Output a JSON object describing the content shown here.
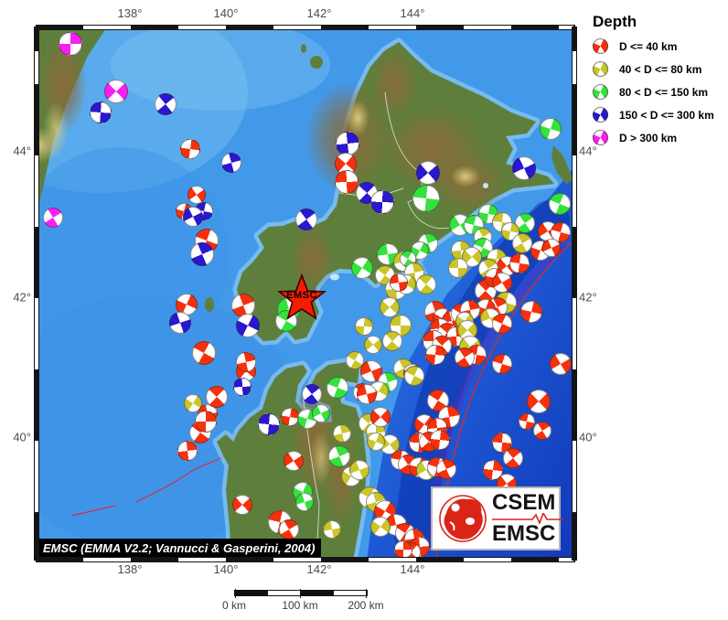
{
  "axes": {
    "top": [
      "138°",
      "140°",
      "142°",
      "144°"
    ],
    "bottom": [
      "138°",
      "140°",
      "142°",
      "144°"
    ],
    "left": [
      "44°",
      "42°",
      "40°"
    ],
    "right": [
      "44°",
      "42°",
      "40°"
    ]
  },
  "legend": {
    "title": "Depth",
    "items": [
      {
        "label": "D <= 40 km",
        "color": "#f7300c"
      },
      {
        "label": "40 < D <= 80 km",
        "color": "#c9c52b"
      },
      {
        "label": "80 < D <= 150 km",
        "color": "#35e23c"
      },
      {
        "label": "150 < D <= 300 km",
        "color": "#2a17cf"
      },
      {
        "label": "D > 300 km",
        "color": "#fb1ef2"
      }
    ]
  },
  "star": {
    "label": "EMSC"
  },
  "attribution": {
    "text": "EMSC (EMMA V2.2; Vannucci & Gasperini, 2004)"
  },
  "logo": {
    "line1": "CSEM",
    "line2": "EMSC"
  },
  "scalebar": {
    "labels": [
      "0 km",
      "100 km",
      "200 km"
    ]
  },
  "depth_colors": [
    "#f7300c",
    "#c9c52b",
    "#35e23c",
    "#2a17cf",
    "#fb1ef2"
  ],
  "balls": [
    [
      76,
      47,
      26,
      4
    ],
    [
      126,
      99,
      26,
      4
    ],
    [
      109,
      122,
      24,
      3
    ],
    [
      180,
      113,
      24,
      3
    ],
    [
      207,
      162,
      22,
      0
    ],
    [
      214,
      212,
      20,
      0
    ],
    [
      222,
      230,
      20,
      3
    ],
    [
      57,
      237,
      22,
      4
    ],
    [
      200,
      230,
      18,
      0
    ],
    [
      210,
      236,
      22,
      3
    ],
    [
      225,
      262,
      26,
      0
    ],
    [
      220,
      277,
      26,
      3
    ],
    [
      203,
      332,
      24,
      0
    ],
    [
      196,
      352,
      24,
      3
    ],
    [
      222,
      385,
      26,
      0
    ],
    [
      252,
      177,
      22,
      3
    ],
    [
      210,
      440,
      20,
      1
    ],
    [
      226,
      452,
      22,
      0
    ],
    [
      218,
      472,
      24,
      0
    ],
    [
      204,
      492,
      22,
      0
    ],
    [
      268,
      405,
      22,
      0
    ],
    [
      264,
      422,
      20,
      3
    ],
    [
      236,
      433,
      24,
      0
    ],
    [
      224,
      460,
      24,
      0
    ],
    [
      264,
      551,
      22,
      0
    ],
    [
      293,
      463,
      24,
      3
    ],
    [
      340,
      430,
      22,
      3
    ],
    [
      316,
      455,
      20,
      0
    ],
    [
      320,
      503,
      22,
      0
    ],
    [
      305,
      570,
      26,
      0
    ],
    [
      315,
      578,
      22,
      0
    ],
    [
      335,
      457,
      22,
      2
    ],
    [
      350,
      451,
      20,
      2
    ],
    [
      368,
      423,
      24,
      2
    ],
    [
      370,
      498,
      24,
      2
    ],
    [
      330,
      537,
      22,
      2
    ],
    [
      332,
      548,
      20,
      2
    ],
    [
      387,
      393,
      20,
      1
    ],
    [
      373,
      473,
      20,
      1
    ],
    [
      383,
      520,
      22,
      1
    ],
    [
      362,
      578,
      20,
      1
    ],
    [
      395,
      428,
      20,
      0
    ],
    [
      379,
      156,
      26,
      3
    ],
    [
      377,
      178,
      24,
      0
    ],
    [
      378,
      198,
      26,
      0
    ],
    [
      400,
      210,
      24,
      3
    ],
    [
      417,
      220,
      26,
      3
    ],
    [
      467,
      188,
      26,
      3
    ],
    [
      465,
      216,
      30,
      2
    ],
    [
      334,
      239,
      24,
      3
    ],
    [
      533,
      233,
      22,
      2
    ],
    [
      502,
      245,
      24,
      2
    ],
    [
      517,
      245,
      22,
      2
    ],
    [
      527,
      258,
      20,
      1
    ],
    [
      601,
      140,
      24,
      2
    ],
    [
      572,
      183,
      26,
      3
    ],
    [
      611,
      222,
      24,
      2
    ],
    [
      265,
      333,
      26,
      0
    ],
    [
      270,
      355,
      26,
      3
    ],
    [
      315,
      337,
      26,
      2
    ],
    [
      312,
      350,
      24,
      2
    ],
    [
      268,
      395,
      22,
      0
    ],
    [
      395,
      292,
      24,
      2
    ],
    [
      423,
      277,
      24,
      2
    ],
    [
      420,
      300,
      22,
      1
    ],
    [
      432,
      315,
      24,
      1
    ],
    [
      425,
      335,
      22,
      1
    ],
    [
      437,
      355,
      24,
      1
    ],
    [
      428,
      372,
      22,
      1
    ],
    [
      397,
      356,
      20,
      1
    ],
    [
      407,
      376,
      20,
      1
    ],
    [
      548,
      242,
      22,
      1
    ],
    [
      573,
      243,
      22,
      2
    ],
    [
      557,
      252,
      20,
      1
    ],
    [
      598,
      252,
      22,
      0
    ],
    [
      612,
      253,
      22,
      0
    ],
    [
      570,
      265,
      22,
      1
    ],
    [
      590,
      273,
      22,
      0
    ],
    [
      602,
      270,
      20,
      0
    ],
    [
      527,
      270,
      22,
      2
    ],
    [
      467,
      265,
      22,
      2
    ],
    [
      458,
      273,
      20,
      2
    ],
    [
      440,
      285,
      22,
      1
    ],
    [
      445,
      282,
      18,
      2
    ],
    [
      452,
      297,
      22,
      1
    ],
    [
      443,
      310,
      22,
      1
    ],
    [
      435,
      308,
      20,
      0
    ],
    [
      465,
      310,
      22,
      1
    ],
    [
      503,
      273,
      22,
      1
    ],
    [
      515,
      280,
      22,
      1
    ],
    [
      500,
      292,
      22,
      1
    ],
    [
      530,
      317,
      24,
      0
    ],
    [
      542,
      282,
      22,
      1
    ],
    [
      553,
      290,
      22,
      0
    ],
    [
      567,
      287,
      22,
      0
    ],
    [
      533,
      293,
      22,
      1
    ],
    [
      540,
      303,
      22,
      0
    ],
    [
      548,
      308,
      22,
      0
    ],
    [
      552,
      330,
      24,
      1
    ],
    [
      543,
      335,
      22,
      0
    ],
    [
      530,
      337,
      22,
      0
    ],
    [
      535,
      347,
      22,
      1
    ],
    [
      548,
      353,
      22,
      0
    ],
    [
      475,
      340,
      24,
      0
    ],
    [
      483,
      347,
      22,
      0
    ],
    [
      493,
      350,
      22,
      0
    ],
    [
      503,
      342,
      22,
      0
    ],
    [
      513,
      338,
      22,
      0
    ],
    [
      507,
      350,
      20,
      1
    ],
    [
      480,
      358,
      22,
      0
    ],
    [
      488,
      363,
      22,
      0
    ],
    [
      498,
      367,
      22,
      0
    ],
    [
      510,
      360,
      22,
      1
    ],
    [
      473,
      372,
      24,
      0
    ],
    [
      482,
      377,
      22,
      0
    ],
    [
      475,
      387,
      22,
      0
    ],
    [
      513,
      378,
      24,
      1
    ],
    [
      520,
      387,
      22,
      0
    ],
    [
      507,
      390,
      22,
      0
    ],
    [
      580,
      340,
      24,
      0
    ],
    [
      612,
      397,
      24,
      0
    ],
    [
      548,
      397,
      22,
      0
    ],
    [
      440,
      402,
      22,
      1
    ],
    [
      450,
      407,
      20,
      0
    ],
    [
      405,
      405,
      24,
      0
    ],
    [
      452,
      410,
      22,
      1
    ],
    [
      423,
      417,
      22,
      2
    ],
    [
      413,
      427,
      22,
      1
    ],
    [
      400,
      430,
      22,
      0
    ],
    [
      478,
      437,
      24,
      0
    ],
    [
      490,
      455,
      24,
      0
    ],
    [
      463,
      463,
      22,
      0
    ],
    [
      477,
      467,
      22,
      0
    ],
    [
      402,
      462,
      22,
      1
    ],
    [
      410,
      472,
      22,
      1
    ],
    [
      415,
      455,
      22,
      0
    ],
    [
      457,
      483,
      22,
      0
    ],
    [
      468,
      482,
      22,
      0
    ],
    [
      480,
      480,
      22,
      0
    ],
    [
      425,
      485,
      22,
      1
    ],
    [
      437,
      502,
      22,
      0
    ],
    [
      445,
      507,
      22,
      0
    ],
    [
      457,
      510,
      22,
      0
    ],
    [
      465,
      513,
      22,
      1
    ],
    [
      477,
      510,
      22,
      0
    ],
    [
      487,
      512,
      22,
      0
    ],
    [
      410,
      482,
      20,
      1
    ],
    [
      392,
      513,
      22,
      1
    ],
    [
      403,
      543,
      24,
      1
    ],
    [
      410,
      548,
      22,
      1
    ],
    [
      420,
      558,
      24,
      0
    ],
    [
      432,
      573,
      24,
      0
    ],
    [
      442,
      582,
      22,
      0
    ],
    [
      452,
      588,
      22,
      0
    ],
    [
      415,
      575,
      22,
      1
    ],
    [
      458,
      597,
      22,
      0
    ],
    [
      448,
      603,
      22,
      0
    ],
    [
      440,
      600,
      20,
      0
    ],
    [
      588,
      438,
      26,
      0
    ],
    [
      548,
      483,
      22,
      0
    ],
    [
      560,
      500,
      22,
      0
    ],
    [
      538,
      513,
      22,
      0
    ],
    [
      553,
      528,
      22,
      0
    ],
    [
      575,
      460,
      18,
      0
    ],
    [
      592,
      470,
      20,
      0
    ]
  ]
}
